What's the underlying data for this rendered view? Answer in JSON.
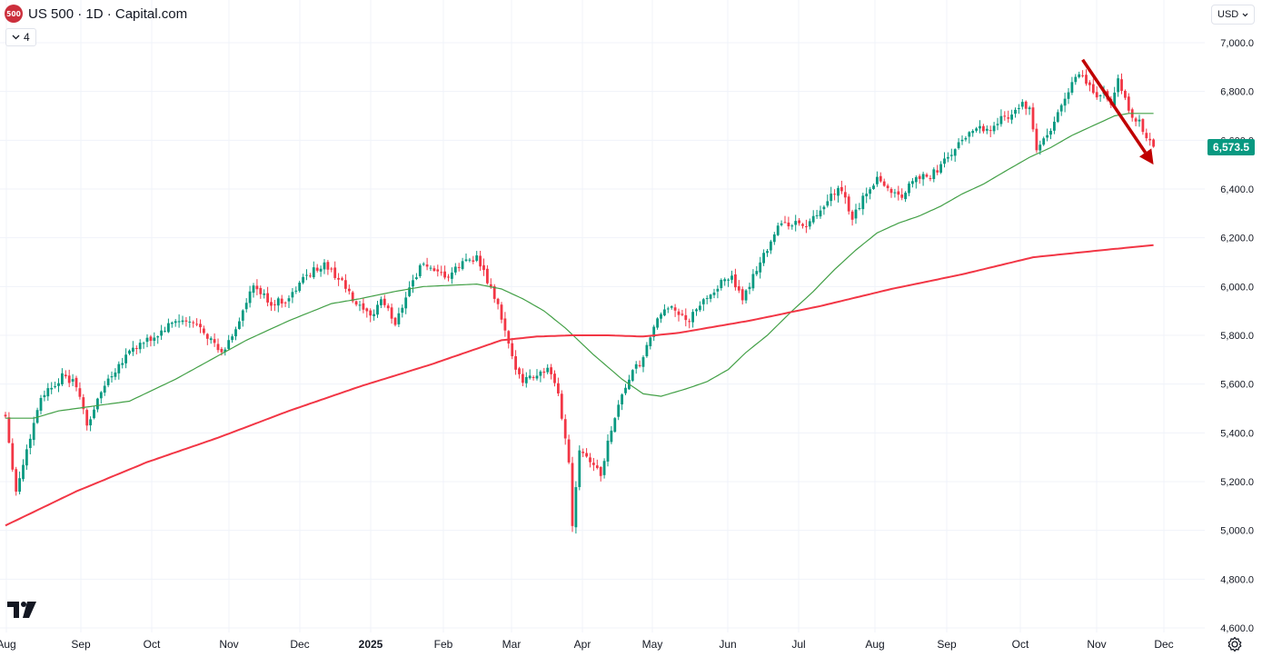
{
  "header": {
    "logo_text": "500",
    "title": "US 500 · 1D · Capital.com",
    "indicators_count": "4",
    "currency": "USD"
  },
  "last_price_label": "6,573.5",
  "icons": [
    "chevron-down-icon",
    "tradingview-logo",
    "settings-icon"
  ],
  "colors": {
    "up": "#089981",
    "down": "#f23645",
    "ma_fast": "#43a047",
    "ma_slow": "#f23645",
    "arrow": "#c00000",
    "price_tag": "#089981"
  },
  "chart_data": {
    "type": "candlestick",
    "title": "US 500 · 1D · Capital.com",
    "ylim": [
      4600,
      7000
    ],
    "y_ticks": [
      "7,000.0",
      "6,800.0",
      "6,600.0",
      "6,400.0",
      "6,200.0",
      "6,000.0",
      "5,800.0",
      "5,600.0",
      "5,400.0",
      "5,200.0",
      "5,000.0",
      "4,800.0",
      "4,600.0"
    ],
    "x_ticks": [
      "Aug",
      "Sep",
      "Oct",
      "Nov",
      "Dec",
      "2025",
      "Feb",
      "Mar",
      "Apr",
      "May",
      "Jun",
      "Jul",
      "Aug",
      "Sep",
      "Oct",
      "Nov",
      "Dec"
    ],
    "last_price": 6573.5,
    "close_series": {
      "anchors": [
        [
          0,
          5470
        ],
        [
          3,
          5160
        ],
        [
          6,
          5330
        ],
        [
          10,
          5550
        ],
        [
          16,
          5630
        ],
        [
          20,
          5600
        ],
        [
          23,
          5430
        ],
        [
          28,
          5600
        ],
        [
          35,
          5740
        ],
        [
          42,
          5790
        ],
        [
          48,
          5860
        ],
        [
          55,
          5840
        ],
        [
          61,
          5720
        ],
        [
          65,
          5830
        ],
        [
          70,
          6000
        ],
        [
          75,
          5930
        ],
        [
          80,
          5950
        ],
        [
          85,
          6050
        ],
        [
          90,
          6090
        ],
        [
          95,
          6020
        ],
        [
          98,
          5940
        ],
        [
          103,
          5870
        ],
        [
          106,
          5950
        ],
        [
          110,
          5850
        ],
        [
          114,
          6000
        ],
        [
          118,
          6100
        ],
        [
          121,
          6050
        ],
        [
          125,
          6040
        ],
        [
          130,
          6110
        ],
        [
          133,
          6120
        ],
        [
          136,
          6020
        ],
        [
          139,
          5920
        ],
        [
          143,
          5700
        ],
        [
          146,
          5620
        ],
        [
          150,
          5640
        ],
        [
          153,
          5660
        ],
        [
          156,
          5560
        ],
        [
          159,
          5280
        ],
        [
          160,
          5030
        ],
        [
          162,
          5340
        ],
        [
          165,
          5290
        ],
        [
          168,
          5230
        ],
        [
          171,
          5420
        ],
        [
          174,
          5560
        ],
        [
          177,
          5650
        ],
        [
          180,
          5700
        ],
        [
          183,
          5840
        ],
        [
          188,
          5930
        ],
        [
          192,
          5850
        ],
        [
          195,
          5900
        ],
        [
          198,
          5960
        ],
        [
          201,
          6000
        ],
        [
          205,
          6050
        ],
        [
          208,
          5930
        ],
        [
          211,
          6050
        ],
        [
          214,
          6130
        ],
        [
          218,
          6250
        ],
        [
          222,
          6260
        ],
        [
          226,
          6250
        ],
        [
          230,
          6300
        ],
        [
          234,
          6390
        ],
        [
          236,
          6390
        ],
        [
          239,
          6280
        ],
        [
          242,
          6360
        ],
        [
          246,
          6450
        ],
        [
          249,
          6400
        ],
        [
          253,
          6370
        ],
        [
          257,
          6460
        ],
        [
          260,
          6440
        ],
        [
          263,
          6480
        ],
        [
          266,
          6530
        ],
        [
          270,
          6600
        ],
        [
          274,
          6660
        ],
        [
          278,
          6640
        ],
        [
          281,
          6690
        ],
        [
          284,
          6710
        ],
        [
          287,
          6750
        ],
        [
          289,
          6720
        ],
        [
          291,
          6560
        ],
        [
          293,
          6600
        ],
        [
          295,
          6630
        ],
        [
          298,
          6750
        ],
        [
          300,
          6810
        ],
        [
          303,
          6870
        ],
        [
          306,
          6820
        ],
        [
          308,
          6780
        ],
        [
          310,
          6800
        ],
        [
          312,
          6730
        ],
        [
          314,
          6850
        ],
        [
          316,
          6760
        ],
        [
          318,
          6700
        ],
        [
          320,
          6670
        ],
        [
          322,
          6620
        ],
        [
          324,
          6573.5
        ]
      ]
    },
    "series": [
      {
        "name": "",
        "type": "line",
        "anchors": [
          [
            0,
            5460
          ],
          [
            8,
            5460
          ],
          [
            15,
            5490
          ],
          [
            25,
            5510
          ],
          [
            35,
            5530
          ],
          [
            48,
            5620
          ],
          [
            58,
            5700
          ],
          [
            68,
            5780
          ],
          [
            80,
            5860
          ],
          [
            92,
            5930
          ],
          [
            100,
            5950
          ],
          [
            110,
            5980
          ],
          [
            118,
            6000
          ],
          [
            133,
            6010
          ],
          [
            140,
            5990
          ],
          [
            146,
            5950
          ],
          [
            152,
            5900
          ],
          [
            158,
            5830
          ],
          [
            166,
            5720
          ],
          [
            174,
            5620
          ],
          [
            180,
            5560
          ],
          [
            185,
            5550
          ],
          [
            192,
            5580
          ],
          [
            198,
            5610
          ],
          [
            204,
            5660
          ],
          [
            209,
            5730
          ],
          [
            215,
            5800
          ],
          [
            222,
            5900
          ],
          [
            228,
            5980
          ],
          [
            234,
            6070
          ],
          [
            240,
            6150
          ],
          [
            246,
            6220
          ],
          [
            252,
            6260
          ],
          [
            258,
            6290
          ],
          [
            264,
            6330
          ],
          [
            270,
            6380
          ],
          [
            276,
            6420
          ],
          [
            283,
            6480
          ],
          [
            289,
            6530
          ],
          [
            295,
            6570
          ],
          [
            301,
            6620
          ],
          [
            307,
            6660
          ],
          [
            313,
            6700
          ],
          [
            317,
            6710
          ],
          [
            322,
            6710
          ],
          [
            324,
            6710
          ]
        ]
      },
      {
        "name": "",
        "type": "line",
        "anchors": [
          [
            0,
            5020
          ],
          [
            20,
            5160
          ],
          [
            40,
            5280
          ],
          [
            60,
            5380
          ],
          [
            80,
            5490
          ],
          [
            100,
            5590
          ],
          [
            120,
            5680
          ],
          [
            140,
            5780
          ],
          [
            150,
            5795
          ],
          [
            160,
            5800
          ],
          [
            170,
            5800
          ],
          [
            180,
            5795
          ],
          [
            190,
            5810
          ],
          [
            210,
            5860
          ],
          [
            230,
            5920
          ],
          [
            250,
            5990
          ],
          [
            270,
            6050
          ],
          [
            290,
            6120
          ],
          [
            310,
            6150
          ],
          [
            324,
            6170
          ]
        ]
      }
    ],
    "annotation": {
      "type": "arrow",
      "from": [
        304,
        6930
      ],
      "to": [
        324,
        6500
      ]
    }
  }
}
